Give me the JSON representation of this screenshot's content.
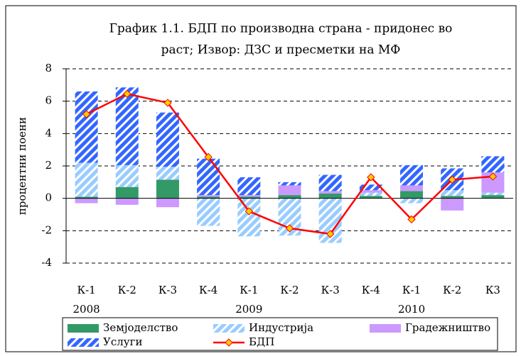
{
  "chart_data": {
    "type": "bar",
    "stacked": true,
    "title_lines": [
      "График 1.1. БДП по производна страна - придонес во",
      "раст; Извор: ДЗС и пресметки на МФ"
    ],
    "y_label": "процентни поени",
    "categories": [
      "К-1",
      "К-2",
      "К-3",
      "К-4",
      "К-1",
      "К-2",
      "К-3",
      "К-4",
      "К-1",
      "К-2",
      "К3"
    ],
    "group_labels": [
      "2008",
      null,
      null,
      null,
      "2009",
      null,
      null,
      null,
      "2010",
      null,
      null
    ],
    "series": [
      {
        "name": "Земјоделство",
        "color": "#339966",
        "pattern": "solid",
        "values": [
          0.1,
          0.7,
          1.15,
          0.1,
          0.1,
          0.2,
          0.3,
          0.15,
          0.45,
          0.15,
          0.2
        ]
      },
      {
        "name": "Индустрија",
        "color": "#99ccff",
        "pattern": "stripes",
        "values": [
          2.1,
          1.35,
          0.8,
          -1.7,
          -2.35,
          -2.3,
          -2.75,
          0.2,
          -0.3,
          0.35,
          0.15
        ]
      },
      {
        "name": "Градежништво",
        "color": "#cc99ff",
        "pattern": "solid",
        "values": [
          -0.3,
          -0.4,
          -0.55,
          0.1,
          0.1,
          0.6,
          0.15,
          0.15,
          0.35,
          -0.75,
          1.25
        ]
      },
      {
        "name": "Услуги",
        "color": "#3366ff",
        "pattern": "stripes",
        "values": [
          4.4,
          4.8,
          3.35,
          2.25,
          1.1,
          0.2,
          1.0,
          0.35,
          1.25,
          1.35,
          1.0
        ]
      },
      {
        "name": "БДП",
        "type": "line",
        "color": "#ff0000",
        "marker_color": "#ffcc00",
        "values": [
          5.2,
          6.45,
          5.9,
          2.55,
          -0.8,
          -1.85,
          -2.2,
          1.3,
          -1.3,
          1.15,
          1.35
        ]
      }
    ],
    "ylim": [
      -4,
      8
    ],
    "yticks": [
      -4,
      -2,
      0,
      2,
      4,
      6,
      8
    ],
    "grid": true
  }
}
